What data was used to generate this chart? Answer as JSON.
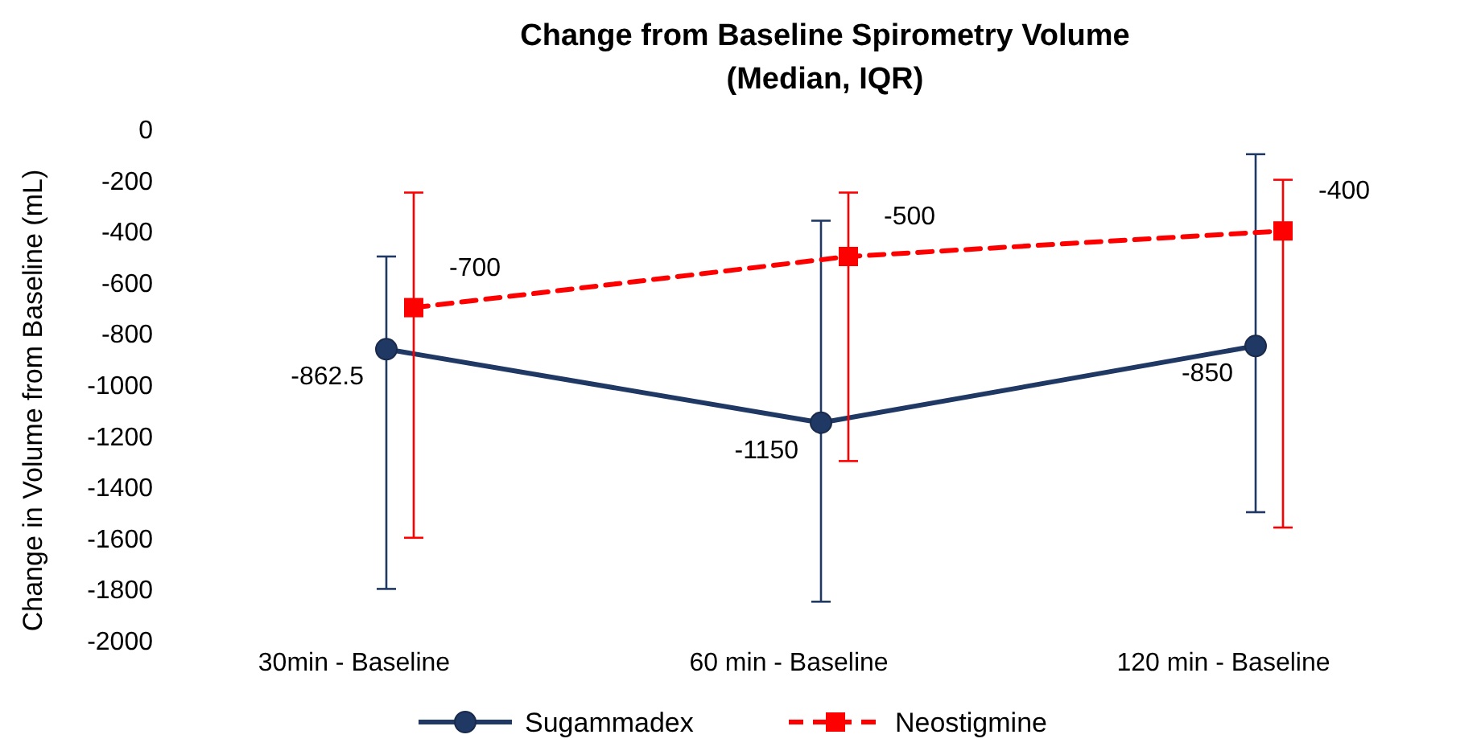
{
  "chart_data": {
    "type": "line",
    "title": "Change from Baseline Spirometry Volume\n(Median, IQR)",
    "ylabel": "Change in Volume from Baseline  (mL)",
    "categories": [
      "30min - Baseline",
      "60 min - Baseline",
      "120 min - Baseline"
    ],
    "ylim": [
      -2000,
      0
    ],
    "yticks": [
      -2000,
      -1800,
      -1600,
      -1400,
      -1200,
      -1000,
      -800,
      -600,
      -400,
      -200,
      0
    ],
    "grid": false,
    "legend": "bottom",
    "data_labels": true,
    "series": [
      {
        "name": "Sugammadex",
        "color": "#1f3864",
        "values": [
          -862.5,
          -1150,
          -850
        ],
        "errors": [
          [
            -1800,
            -500
          ],
          [
            -1850,
            -360
          ],
          [
            -1500,
            -100
          ]
        ],
        "marker": "circle",
        "line_style": "solid"
      },
      {
        "name": "Neostigmine",
        "color": "#ff0000",
        "values": [
          -700,
          -500,
          -400
        ],
        "errors": [
          [
            -1600,
            -250
          ],
          [
            -1300,
            -250
          ],
          [
            -1560,
            -200
          ]
        ],
        "marker": "square",
        "line_style": "dashed"
      }
    ]
  }
}
